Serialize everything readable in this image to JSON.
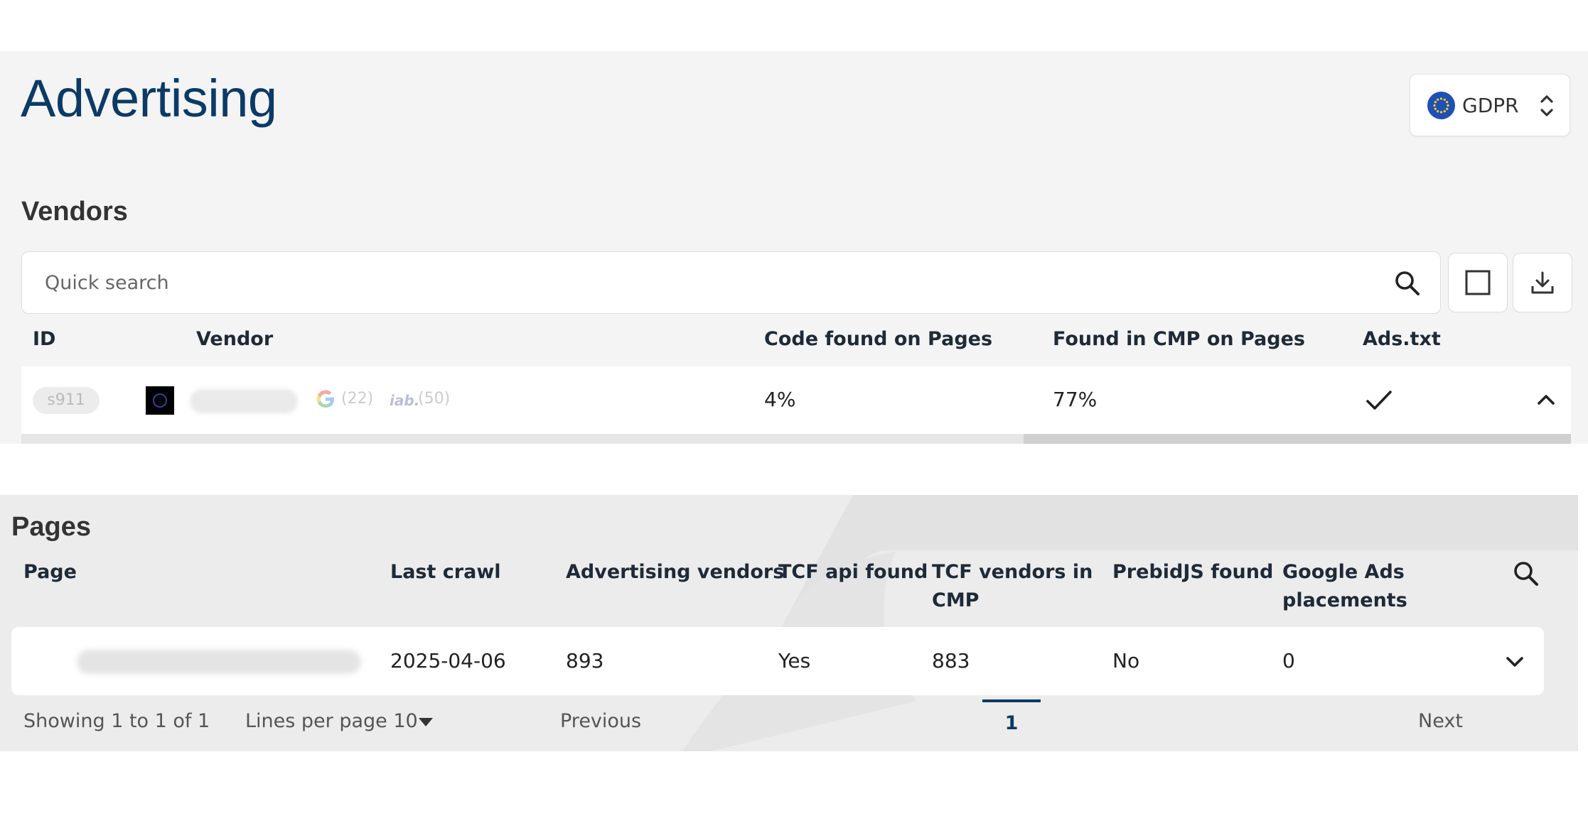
{
  "header": {
    "title": "Advertising",
    "region": {
      "label": "GDPR",
      "flag_icon": "eu-flag-icon"
    }
  },
  "vendors": {
    "title": "Vendors",
    "search_placeholder": "Quick search",
    "columns": {
      "id": "ID",
      "vendor": "Vendor",
      "code_found": "Code found on Pages",
      "found_in_cmp": "Found in CMP on Pages",
      "ads_txt": "Ads.txt"
    },
    "rows": [
      {
        "id": "s911",
        "google_count": "(22)",
        "iab_label": "iab.",
        "iab_count": "(50)",
        "code_found": "4%",
        "found_in_cmp": "77%",
        "ads_txt": true
      }
    ]
  },
  "pages": {
    "title": "Pages",
    "columns": {
      "page": "Page",
      "last_crawl": "Last crawl",
      "advertising_vendors": "Advertising vendors",
      "tcf_api": "TCF api found",
      "tcf_vendors_line1": "TCF vendors in",
      "tcf_vendors_line2": "CMP",
      "prebid": "PrebidJS found",
      "google_ads_line1": "Google Ads",
      "google_ads_line2": "placements"
    },
    "rows": [
      {
        "last_crawl": "2025-04-06",
        "advertising_vendors": "893",
        "tcf_api": "Yes",
        "tcf_vendors": "883",
        "prebid": "No",
        "google_ads": "0"
      }
    ],
    "footer": {
      "showing": "Showing 1 to 1 of 1",
      "lines_per_page": "Lines per page 10",
      "previous": "Previous",
      "current_page": "1",
      "next": "Next"
    }
  },
  "colors": {
    "accent": "#0b3a66",
    "panel": "#f4f4f4",
    "panel_bottom": "#ececec"
  }
}
